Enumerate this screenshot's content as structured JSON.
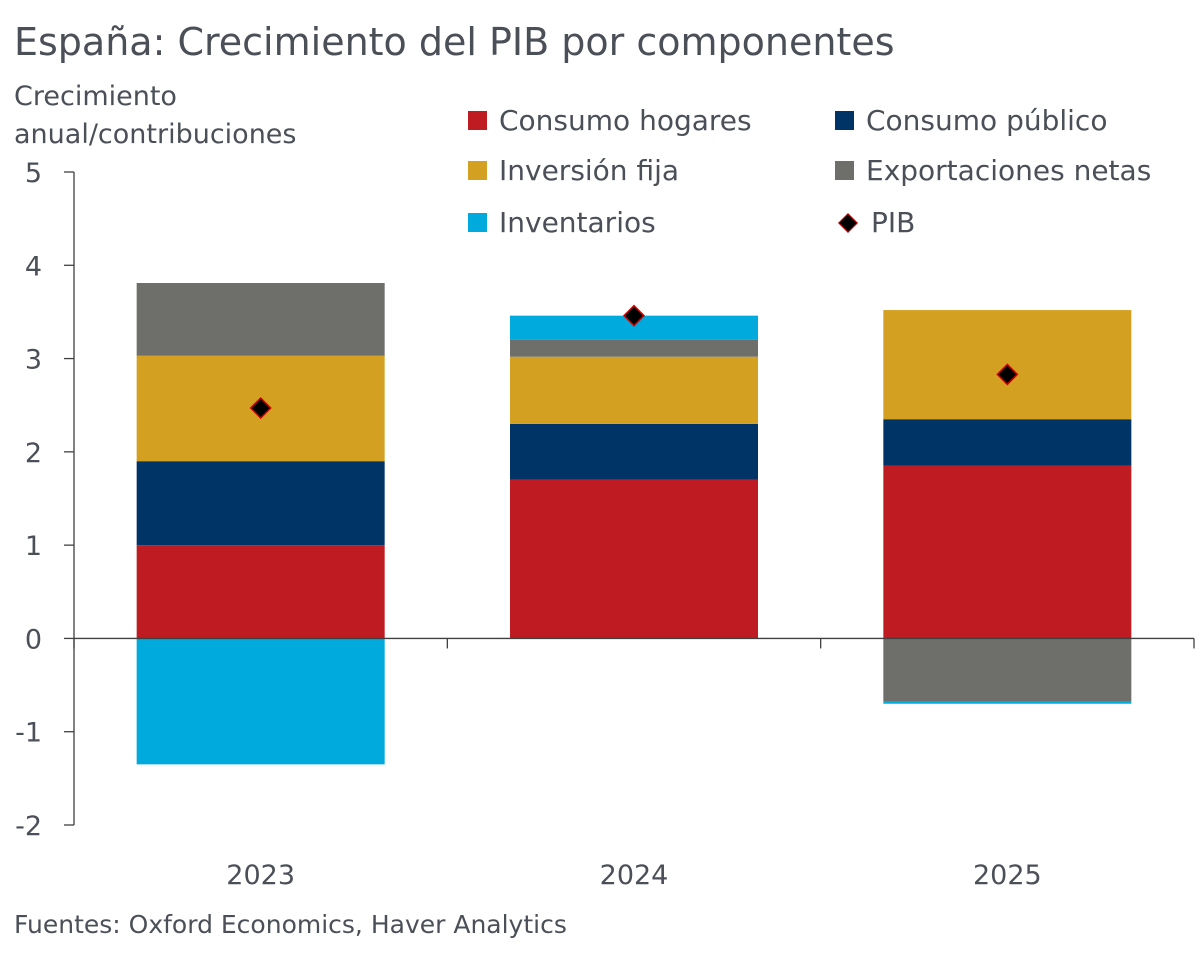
{
  "title": "España: Crecimiento del PIB por componentes",
  "ylabel": "Crecimiento anual/contribuciones",
  "source": "Fuentes: Oxford Economics, Haver Analytics",
  "chart_data": {
    "type": "bar",
    "stacked": true,
    "categories": [
      "2023",
      "2024",
      "2025"
    ],
    "ylim": [
      -2,
      5
    ],
    "yticks": [
      -2,
      -1,
      0,
      1,
      2,
      3,
      4,
      5
    ],
    "series": [
      {
        "name": "Consumo hogares",
        "color": "#be1b23",
        "values": [
          1.0,
          1.7,
          1.85
        ]
      },
      {
        "name": "Consumo público",
        "color": "#003366",
        "values": [
          0.9,
          0.6,
          0.5
        ]
      },
      {
        "name": "Inversión fija",
        "color": "#d4a021",
        "values": [
          1.13,
          0.72,
          1.17
        ]
      },
      {
        "name": "Exportaciones netas",
        "color": "#6e6e6a",
        "values": [
          0.78,
          0.18,
          -0.68
        ]
      },
      {
        "name": "Inventarios",
        "color": "#00aadd",
        "values": [
          -1.35,
          0.26,
          -0.02
        ]
      }
    ],
    "line_series": {
      "name": "PIB",
      "marker": "diamond",
      "values": [
        2.47,
        3.46,
        2.83
      ]
    }
  }
}
